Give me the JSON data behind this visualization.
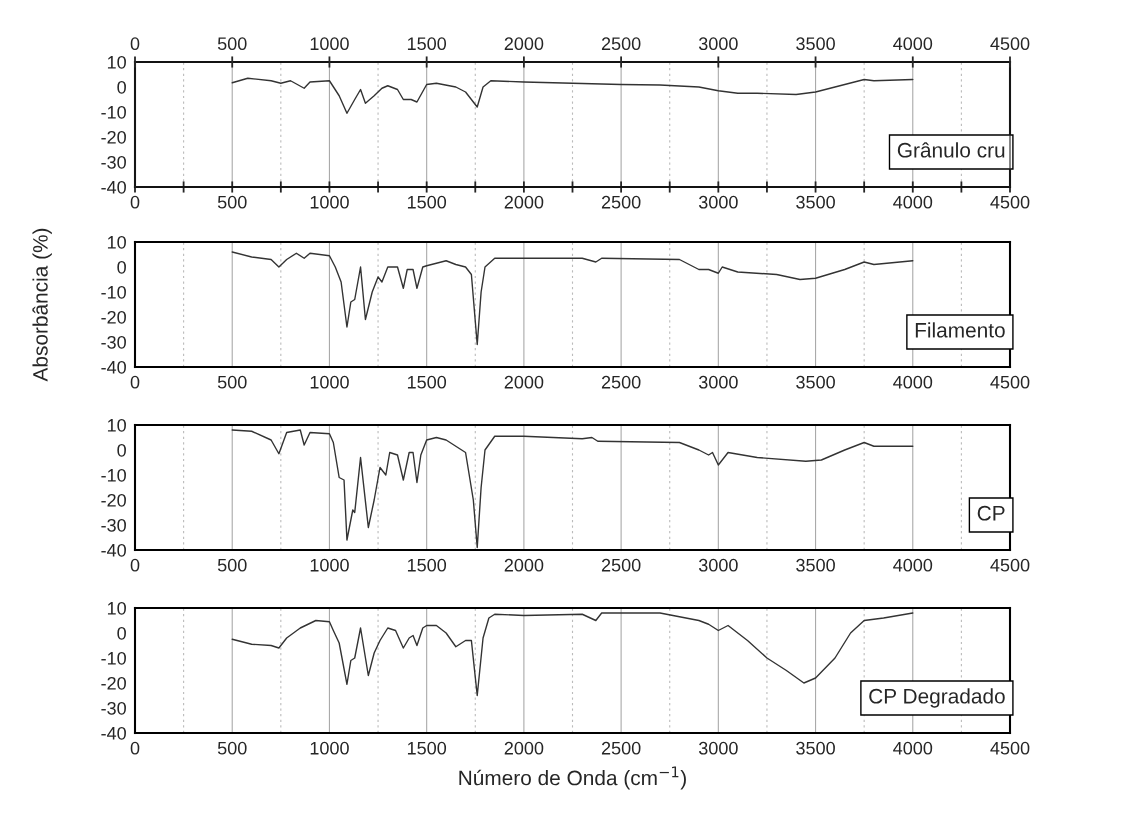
{
  "chart_data": [
    {
      "type": "line",
      "xlim": [
        0,
        4500
      ],
      "ylim": [
        -40,
        10
      ],
      "grid": "x",
      "marker": "none",
      "line_style": "solid",
      "xticks": [
        0,
        {
          "value": 250,
          "label": null
        },
        500,
        {
          "value": 750,
          "label": null
        },
        1000,
        {
          "value": 1250,
          "label": null
        },
        1500,
        {
          "value": 1750,
          "label": null
        },
        2000,
        {
          "value": 2250,
          "label": null
        },
        2500,
        {
          "value": 2750,
          "label": null
        },
        3000,
        {
          "value": 3250,
          "label": null
        },
        3500,
        {
          "value": 3750,
          "label": null
        },
        4000,
        {
          "value": 4250,
          "label": null
        },
        4500
      ],
      "x2lim": [
        0,
        4500
      ],
      "x2ticks": [
        0,
        500,
        1000,
        1500,
        2000,
        2500,
        3000,
        3500,
        4000,
        4500
      ],
      "yticks": [
        -40,
        -30,
        -20,
        -10,
        0,
        10
      ],
      "series": [
        {
          "name": "Grânulo cru",
          "color": "#333333",
          "x": [
            500,
            580,
            700,
            750,
            800,
            870,
            900,
            1000,
            1050,
            1090,
            1130,
            1160,
            1185,
            1230,
            1270,
            1300,
            1350,
            1380,
            1420,
            1450,
            1500,
            1550,
            1650,
            1700,
            1760,
            1790,
            1830,
            2000,
            2500,
            2700,
            2900,
            3000,
            3100,
            3200,
            3400,
            3500,
            3600,
            3700,
            3750,
            3800,
            4000
          ],
          "values": [
            1.7,
            3.5,
            2.5,
            1.5,
            2.5,
            -0.5,
            2,
            2.5,
            -3.5,
            -10.5,
            -5,
            -1,
            -6.5,
            -3.5,
            -0.5,
            0.5,
            -1,
            -5,
            -5,
            -6,
            1,
            1.5,
            0,
            -2,
            -8,
            0,
            2.5,
            2,
            1,
            0.8,
            0,
            -1.5,
            -2.5,
            -2.5,
            -3,
            -2,
            0,
            2,
            3,
            2.5,
            3
          ]
        }
      ]
    },
    {
      "type": "line",
      "ylabel": "Absorbância (%)",
      "xlim": [
        0,
        4500
      ],
      "ylim": [
        -40,
        10
      ],
      "grid": "x",
      "marker": "none",
      "line_style": "solid",
      "xticks": [
        0,
        {
          "value": 250,
          "label": null
        },
        500,
        {
          "value": 750,
          "label": null
        },
        1000,
        {
          "value": 1250,
          "label": null
        },
        1500,
        {
          "value": 1750,
          "label": null
        },
        2000,
        {
          "value": 2250,
          "label": null
        },
        2500,
        {
          "value": 2750,
          "label": null
        },
        3000,
        {
          "value": 3250,
          "label": null
        },
        3500,
        {
          "value": 3750,
          "label": null
        },
        4000,
        {
          "value": 4250,
          "label": null
        },
        4500
      ],
      "yticks": [
        -40,
        -30,
        -20,
        -10,
        0,
        10
      ],
      "series": [
        {
          "name": "Filamento",
          "color": "#333333",
          "x": [
            500,
            600,
            700,
            740,
            780,
            830,
            870,
            900,
            1000,
            1030,
            1060,
            1090,
            1110,
            1130,
            1160,
            1185,
            1220,
            1250,
            1270,
            1300,
            1350,
            1380,
            1400,
            1430,
            1450,
            1480,
            1500,
            1600,
            1650,
            1700,
            1730,
            1760,
            1780,
            1800,
            1850,
            2000,
            2300,
            2370,
            2400,
            2800,
            2900,
            2950,
            3000,
            3020,
            3100,
            3300,
            3420,
            3500,
            3650,
            3750,
            3800,
            4000
          ],
          "values": [
            6,
            4,
            3,
            0,
            3,
            5.5,
            3.5,
            5.5,
            4.5,
            0,
            -6,
            -24,
            -14,
            -13,
            0,
            -21,
            -10,
            -4,
            -6,
            0,
            0,
            -8.5,
            -1,
            -1,
            -8.5,
            0,
            0.5,
            2.5,
            1,
            0,
            -3,
            -31,
            -10,
            0,
            3.5,
            3.5,
            3.5,
            2,
            3.5,
            3,
            -1,
            -1,
            -2.5,
            0,
            -2,
            -3,
            -5,
            -4.5,
            -1,
            2,
            1,
            2.5
          ]
        }
      ]
    },
    {
      "type": "line",
      "xlim": [
        0,
        4500
      ],
      "ylim": [
        -40,
        10
      ],
      "grid": "x",
      "marker": "none",
      "line_style": "solid",
      "xticks": [
        0,
        {
          "value": 250,
          "label": null
        },
        500,
        {
          "value": 750,
          "label": null
        },
        1000,
        {
          "value": 1250,
          "label": null
        },
        1500,
        {
          "value": 1750,
          "label": null
        },
        2000,
        {
          "value": 2250,
          "label": null
        },
        2500,
        {
          "value": 2750,
          "label": null
        },
        3000,
        {
          "value": 3250,
          "label": null
        },
        3500,
        {
          "value": 3750,
          "label": null
        },
        4000,
        {
          "value": 4250,
          "label": null
        },
        4500
      ],
      "yticks": [
        -40,
        -30,
        -20,
        -10,
        0,
        10
      ],
      "series": [
        {
          "name": "CP",
          "color": "#333333",
          "x": [
            500,
            600,
            700,
            740,
            780,
            850,
            870,
            900,
            1000,
            1020,
            1050,
            1075,
            1090,
            1120,
            1130,
            1160,
            1200,
            1230,
            1260,
            1290,
            1310,
            1350,
            1380,
            1410,
            1430,
            1450,
            1470,
            1500,
            1550,
            1600,
            1700,
            1740,
            1760,
            1780,
            1800,
            1850,
            2000,
            2300,
            2350,
            2380,
            2800,
            2900,
            2950,
            2970,
            3000,
            3050,
            3200,
            3450,
            3530,
            3650,
            3750,
            3800,
            4000
          ],
          "values": [
            8,
            7.5,
            4,
            -1.5,
            7,
            8,
            2,
            7,
            6.5,
            3,
            -11,
            -12,
            -36,
            -24,
            -25,
            -3,
            -31,
            -20,
            -7,
            -10,
            -1,
            -2,
            -12,
            -1,
            -1,
            -13,
            -2,
            4,
            5,
            4,
            -1,
            -20,
            -39,
            -15,
            0,
            5.5,
            5.5,
            4.5,
            5,
            3.5,
            3,
            0,
            -2,
            -1,
            -6,
            -1,
            -3,
            -4.5,
            -4,
            0,
            3,
            1.5,
            1.5
          ]
        }
      ]
    },
    {
      "type": "line",
      "xlabel": "Número de Onda (cm$^{−1}$)",
      "xlim": [
        0,
        4500
      ],
      "ylim": [
        -40,
        10
      ],
      "grid": "x",
      "marker": "none",
      "line_style": "solid",
      "xticks": [
        0,
        {
          "value": 250,
          "label": null
        },
        500,
        {
          "value": 750,
          "label": null
        },
        1000,
        {
          "value": 1250,
          "label": null
        },
        1500,
        {
          "value": 1750,
          "label": null
        },
        2000,
        {
          "value": 2250,
          "label": null
        },
        2500,
        {
          "value": 2750,
          "label": null
        },
        3000,
        {
          "value": 3250,
          "label": null
        },
        3500,
        {
          "value": 3750,
          "label": null
        },
        4000,
        {
          "value": 4250,
          "label": null
        },
        4500
      ],
      "yticks": [
        -40,
        -30,
        -20,
        -10,
        0,
        10
      ],
      "series": [
        {
          "name": "CP Degradado",
          "color": "#333333",
          "x": [
            500,
            600,
            700,
            740,
            780,
            850,
            930,
            1000,
            1020,
            1050,
            1090,
            1110,
            1130,
            1160,
            1200,
            1230,
            1260,
            1300,
            1340,
            1380,
            1410,
            1430,
            1450,
            1480,
            1500,
            1550,
            1600,
            1650,
            1700,
            1730,
            1760,
            1790,
            1820,
            1850,
            2000,
            2300,
            2370,
            2400,
            2700,
            2900,
            2950,
            3000,
            3050,
            3150,
            3250,
            3350,
            3440,
            3500,
            3600,
            3680,
            3750,
            3850,
            4000
          ],
          "values": [
            -2.5,
            -4.5,
            -5,
            -6,
            -2,
            2,
            5,
            4.5,
            1,
            -4,
            -20.5,
            -11,
            -10,
            2,
            -17,
            -8,
            -3,
            2,
            1,
            -6,
            -2,
            -1,
            -5,
            2,
            3,
            3,
            0,
            -5.5,
            -3,
            -3,
            -25,
            -2,
            6,
            7.5,
            7,
            7.5,
            5,
            8,
            8,
            5,
            3.5,
            1,
            3,
            -3,
            -10,
            -15,
            -20,
            -18,
            -10,
            0,
            5,
            6,
            8
          ]
        }
      ]
    }
  ]
}
